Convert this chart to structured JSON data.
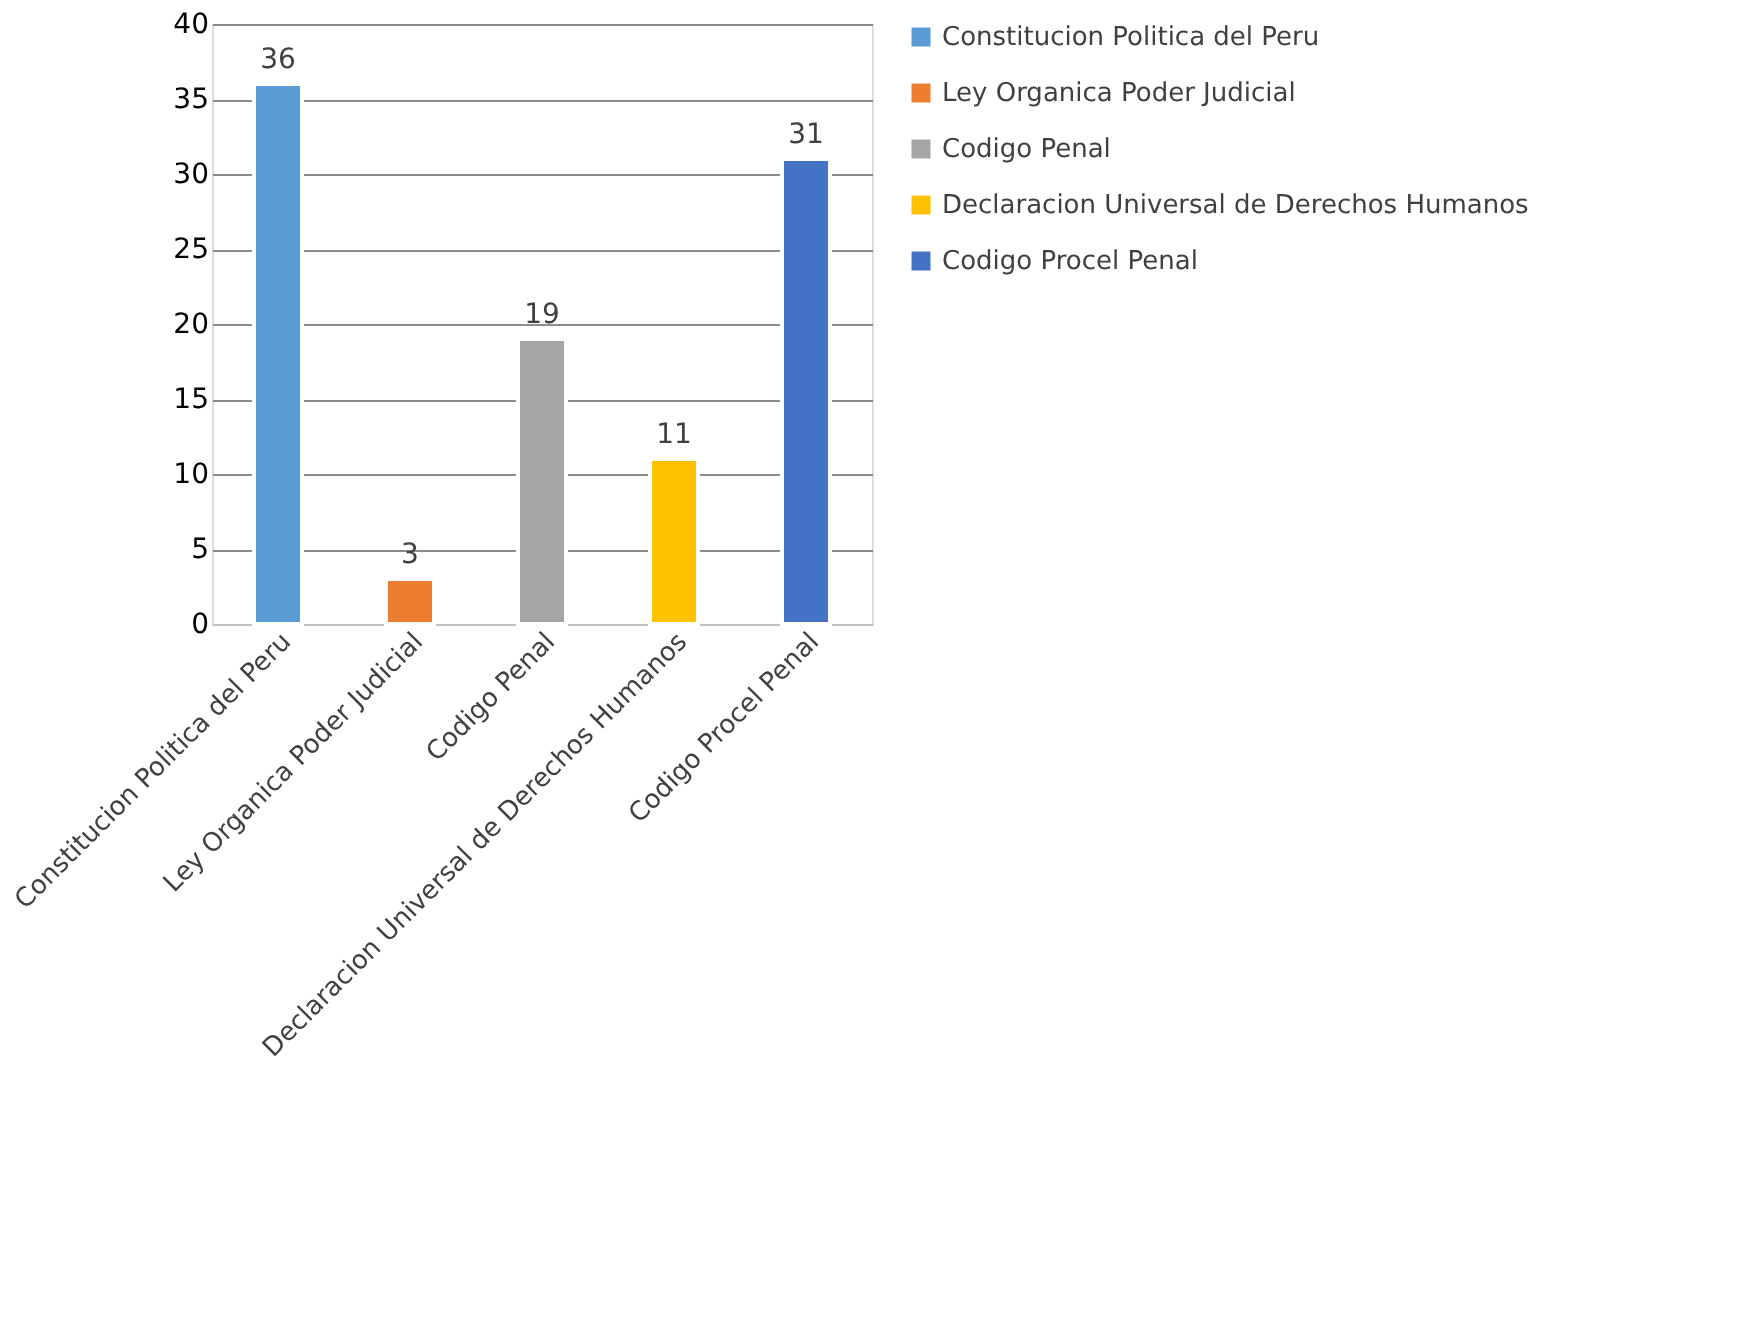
{
  "chart_data": {
    "type": "bar",
    "stacked": true,
    "categories": [
      "Constitucion Politica del Peru",
      "Ley Organica Poder Judicial",
      "Codigo Penal",
      "Declaracion Universal de Derechos Humanos",
      "Codigo Procel Penal"
    ],
    "series": [
      {
        "name": "Constitucion Politica del Peru",
        "color": "#5b9bd5",
        "values": [
          36,
          null,
          null,
          null,
          null
        ]
      },
      {
        "name": "Ley Organica Poder Judicial",
        "color": "#ed7d31",
        "values": [
          null,
          3,
          null,
          null,
          null
        ]
      },
      {
        "name": "Codigo Penal",
        "color": "#a5a5a5",
        "values": [
          null,
          null,
          19,
          null,
          null
        ]
      },
      {
        "name": "Declaracion Universal de Derechos Humanos",
        "color": "#ffc000",
        "values": [
          null,
          null,
          null,
          11,
          null
        ]
      },
      {
        "name": "Codigo Procel Penal",
        "color": "#4472c4",
        "values": [
          null,
          null,
          null,
          null,
          31
        ]
      }
    ],
    "ylim": [
      0,
      40
    ],
    "yticks": [
      0,
      5,
      10,
      15,
      20,
      25,
      30,
      35,
      40
    ],
    "grid": "y",
    "legend": "right",
    "data_labels": true
  }
}
